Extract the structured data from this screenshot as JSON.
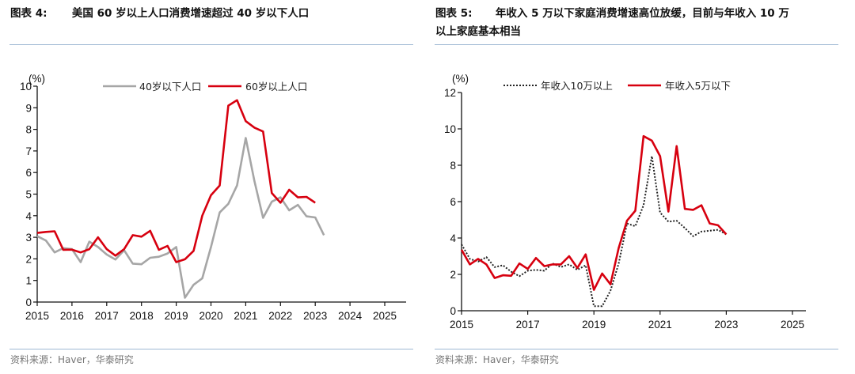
{
  "left": {
    "title_prefix": "图表 4:",
    "title": "美国 60 岁以上人口消费增速超过 40 岁以下人口",
    "source": "资料来源：Haver，华泰研究"
  },
  "right": {
    "title_prefix": "图表 5:",
    "title_line1": "年收入 5 万以下家庭消费增速高位放缓，目前与年收入 10 万",
    "title_line2": "以上家庭基本相当",
    "source": "资料来源：Haver，华泰研究"
  },
  "colors": {
    "red": "#d7000f",
    "gray": "#a6a6a6",
    "dotted": "#222222",
    "rule": "#9fb8d3"
  },
  "chart_data": [
    {
      "type": "line",
      "unit_label": "(%)",
      "xlabel": "",
      "ylabel": "(%)",
      "ylim": [
        0,
        10
      ],
      "yticks": [
        "0",
        "1",
        "2",
        "3",
        "4",
        "5",
        "6",
        "7",
        "8",
        "9",
        "10"
      ],
      "xticks": [
        "2015",
        "2016",
        "2017",
        "2018",
        "2019",
        "2020",
        "2021",
        "2022",
        "2023",
        "2024",
        "2025"
      ],
      "xlim": [
        2015,
        2025.75
      ],
      "x_start": 2015,
      "x_step": 0.25,
      "legend": "top-center",
      "grid": false,
      "series": [
        {
          "name": "40岁以下人口",
          "color": "#a6a6a6",
          "style": "solid",
          "values": [
            3.05,
            2.85,
            2.3,
            2.5,
            2.45,
            1.85,
            2.8,
            2.55,
            2.2,
            1.97,
            2.4,
            1.78,
            1.75,
            2.05,
            2.1,
            2.25,
            2.55,
            0.2,
            0.8,
            1.1,
            2.55,
            4.15,
            4.55,
            5.4,
            7.6,
            5.6,
            3.9,
            4.65,
            4.85,
            4.25,
            4.5,
            3.97,
            3.92,
            3.1
          ]
        },
        {
          "name": "60岁以上人口",
          "color": "#d7000f",
          "style": "solid",
          "values": [
            3.2,
            3.25,
            3.28,
            2.42,
            2.43,
            2.3,
            2.45,
            3.0,
            2.45,
            2.15,
            2.45,
            3.1,
            3.03,
            3.3,
            2.42,
            2.6,
            1.85,
            1.98,
            2.37,
            4.0,
            4.95,
            5.4,
            9.1,
            9.35,
            8.38,
            8.08,
            7.9,
            5.05,
            4.6,
            5.2,
            4.85,
            4.87,
            4.6
          ]
        }
      ]
    },
    {
      "type": "line",
      "unit_label": "(%)",
      "xlabel": "",
      "ylabel": "(%)",
      "ylim": [
        0,
        12
      ],
      "yticks": [
        "0",
        "2",
        "4",
        "6",
        "8",
        "10",
        "12"
      ],
      "xticks": [
        "2015",
        "2017",
        "2019",
        "2021",
        "2023",
        "2025"
      ],
      "xlim": [
        2015,
        2025.75
      ],
      "x_start": 2015,
      "x_step": 0.25,
      "legend": "top-center",
      "grid": false,
      "series": [
        {
          "name": "年收入10万以上",
          "color": "#222222",
          "style": "dotted",
          "values": [
            3.65,
            2.85,
            2.7,
            2.95,
            2.4,
            2.5,
            2.15,
            1.9,
            2.2,
            2.25,
            2.2,
            2.6,
            2.4,
            2.55,
            2.25,
            2.5,
            0.25,
            0.25,
            1.1,
            2.6,
            4.8,
            4.65,
            5.8,
            8.5,
            5.4,
            4.9,
            4.95,
            4.55,
            4.1,
            4.35,
            4.4,
            4.45,
            4.2
          ]
        },
        {
          "name": "年收入5万以下",
          "color": "#d7000f",
          "style": "solid",
          "values": [
            3.35,
            2.55,
            2.85,
            2.55,
            1.8,
            1.95,
            1.92,
            2.6,
            2.3,
            2.9,
            2.45,
            2.55,
            2.55,
            3.0,
            2.35,
            3.1,
            1.15,
            2.05,
            1.45,
            3.45,
            4.95,
            5.5,
            9.6,
            9.35,
            8.5,
            5.45,
            9.05,
            5.6,
            5.55,
            5.8,
            4.8,
            4.7,
            4.2
          ]
        }
      ]
    }
  ]
}
